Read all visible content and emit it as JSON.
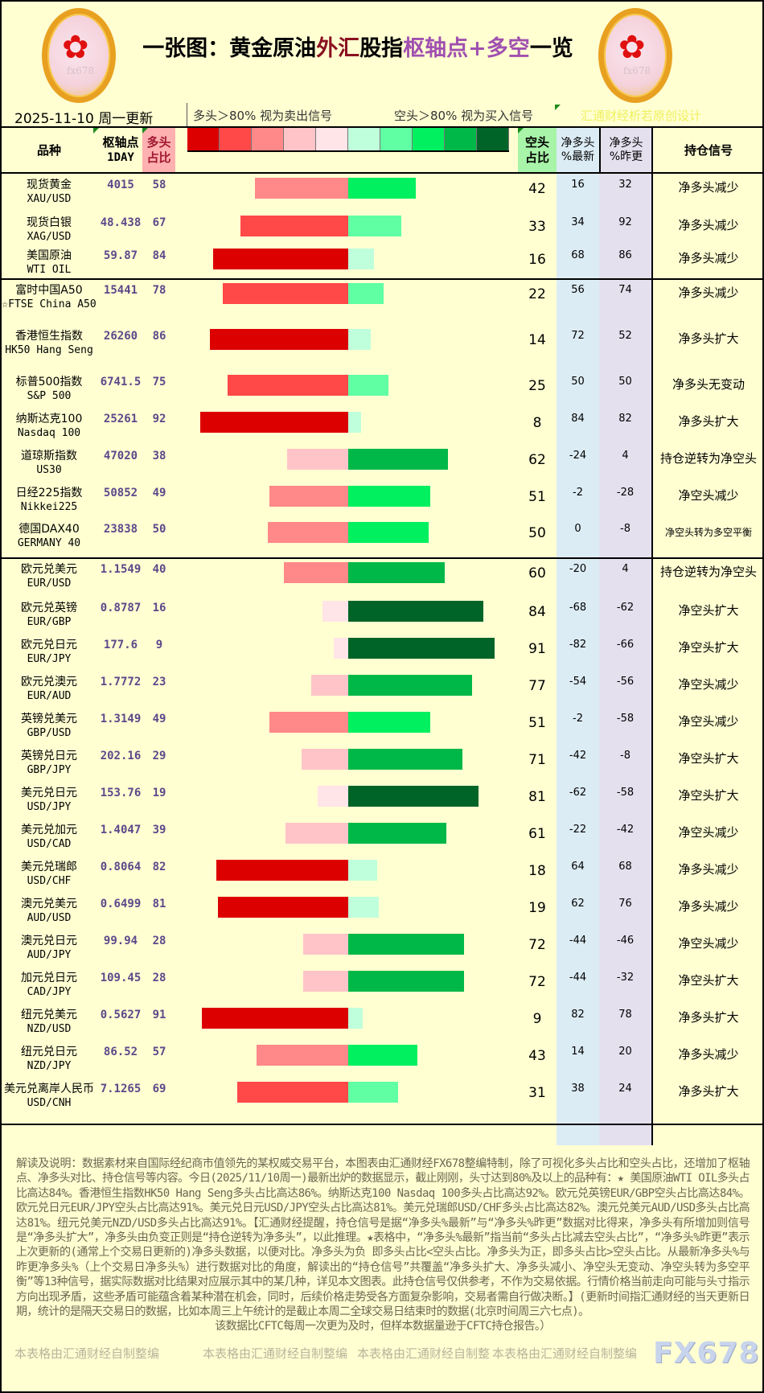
{
  "header": {
    "title_parts": [
      "一张图：黄金原油",
      "外汇",
      "股指",
      "枢轴点+多空",
      "一览"
    ],
    "date": "2025-11-10 周一更新",
    "legend_long": "多头＞80% 视为卖出信号",
    "legend_short": "空头＞80% 视为买入信号",
    "design": "汇通财经析若原创设计",
    "logo_watermark": "fx678 yly"
  },
  "legend_colors": {
    "long": [
      "#dd0000",
      "#ff4848",
      "#ff8888",
      "#ffc4c8",
      "#ffe4e8"
    ],
    "short": [
      "#c0ffdc",
      "#60ffa4",
      "#00f060",
      "#00b848",
      "#006428"
    ]
  },
  "columns": {
    "name": "品种",
    "pivot": "枢轴点",
    "pivot_sub": "1DAY",
    "long": "多头\n占比",
    "short": "空头\n占比",
    "net_latest": "净多头\n%最新",
    "net_prev": "净多头\n%昨更",
    "signal": "持仓信号"
  },
  "groups": [
    {
      "rows": [
        {
          "cn": "现货黄金",
          "en": "XAU/USD",
          "pivot": "4015",
          "long": 58,
          "short": 42,
          "net_latest": "16",
          "net_prev": "32",
          "signal": "净多头减少"
        },
        {
          "cn": "现货白银",
          "en": "XAG/USD",
          "pivot": "48.438",
          "long": 67,
          "short": 33,
          "net_latest": "34",
          "net_prev": "92",
          "signal": "净多头减少"
        },
        {
          "cn": "美国原油",
          "en": "WTI OIL",
          "pivot": "59.87",
          "long": 84,
          "short": 16,
          "net_latest": "68",
          "net_prev": "86",
          "signal": "净多头减少"
        }
      ]
    },
    {
      "rows": [
        {
          "cn": "富时中国A50",
          "en": "☆FTSE China A50",
          "pivot": "15441",
          "long": 78,
          "short": 22,
          "net_latest": "56",
          "net_prev": "74",
          "signal": "净多头减少"
        },
        {
          "cn": "香港恒生指数",
          "en": "HK50 Hang Seng",
          "pivot": "26260",
          "long": 86,
          "short": 14,
          "net_latest": "72",
          "net_prev": "52",
          "signal": "净多头扩大"
        },
        {
          "cn": "标普500指数",
          "en": "S&P 500",
          "pivot": "6741.5",
          "long": 75,
          "short": 25,
          "net_latest": "50",
          "net_prev": "50",
          "signal": "净多头无变动"
        },
        {
          "cn": "纳斯达克100",
          "en": "Nasdaq 100",
          "pivot": "25261",
          "long": 92,
          "short": 8,
          "net_latest": "84",
          "net_prev": "82",
          "signal": "净多头扩大"
        },
        {
          "cn": "道琼斯指数",
          "en": "US30",
          "pivot": "47020",
          "long": 38,
          "short": 62,
          "net_latest": "-24",
          "net_prev": "4",
          "signal": "持仓逆转为净空头"
        },
        {
          "cn": "日经225指数",
          "en": "Nikkei225",
          "pivot": "50852",
          "long": 49,
          "short": 51,
          "net_latest": "-2",
          "net_prev": "-28",
          "signal": "净空头减少"
        },
        {
          "cn": "德国DAX40",
          "en": "GERMANY 40",
          "pivot": "23838",
          "long": 50,
          "short": 50,
          "net_latest": "0",
          "net_prev": "-8",
          "signal": "净空头转为多空平衡"
        }
      ]
    },
    {
      "rows": [
        {
          "cn": "欧元兑美元",
          "en": "EUR/USD",
          "pivot": "1.1549",
          "long": 40,
          "short": 60,
          "net_latest": "-20",
          "net_prev": "4",
          "signal": "持仓逆转为净空头"
        },
        {
          "cn": "欧元兑英镑",
          "en": "EUR/GBP",
          "pivot": "0.8787",
          "long": 16,
          "short": 84,
          "net_latest": "-68",
          "net_prev": "-62",
          "signal": "净空头扩大"
        },
        {
          "cn": "欧元兑日元",
          "en": "EUR/JPY",
          "pivot": "177.6",
          "long": 9,
          "short": 91,
          "net_latest": "-82",
          "net_prev": "-66",
          "signal": "净空头扩大"
        },
        {
          "cn": "欧元兑澳元",
          "en": "EUR/AUD",
          "pivot": "1.7772",
          "long": 23,
          "short": 77,
          "net_latest": "-54",
          "net_prev": "-56",
          "signal": "净空头减少"
        },
        {
          "cn": "英镑兑美元",
          "en": "GBP/USD",
          "pivot": "1.3149",
          "long": 49,
          "short": 51,
          "net_latest": "-2",
          "net_prev": "-58",
          "signal": "净空头减少"
        },
        {
          "cn": "英镑兑日元",
          "en": "GBP/JPY",
          "pivot": "202.16",
          "long": 29,
          "short": 71,
          "net_latest": "-42",
          "net_prev": "-8",
          "signal": "净空头扩大"
        },
        {
          "cn": "美元兑日元",
          "en": "USD/JPY",
          "pivot": "153.76",
          "long": 19,
          "short": 81,
          "net_latest": "-62",
          "net_prev": "-58",
          "signal": "净空头扩大"
        },
        {
          "cn": "美元兑加元",
          "en": "USD/CAD",
          "pivot": "1.4047",
          "long": 39,
          "short": 61,
          "net_latest": "-22",
          "net_prev": "-42",
          "signal": "净空头减少"
        },
        {
          "cn": "美元兑瑞郎",
          "en": "USD/CHF",
          "pivot": "0.8064",
          "long": 82,
          "short": 18,
          "net_latest": "64",
          "net_prev": "68",
          "signal": "净多头减少"
        },
        {
          "cn": "澳元兑美元",
          "en": "AUD/USD",
          "pivot": "0.6499",
          "long": 81,
          "short": 19,
          "net_latest": "62",
          "net_prev": "76",
          "signal": "净多头减少"
        },
        {
          "cn": "澳元兑日元",
          "en": "AUD/JPY",
          "pivot": "99.94",
          "long": 28,
          "short": 72,
          "net_latest": "-44",
          "net_prev": "-46",
          "signal": "净空头减少"
        },
        {
          "cn": "加元兑日元",
          "en": "CAD/JPY",
          "pivot": "109.45",
          "long": 28,
          "short": 72,
          "net_latest": "-44",
          "net_prev": "-32",
          "signal": "净空头扩大"
        },
        {
          "cn": "纽元兑美元",
          "en": "NZD/USD",
          "pivot": "0.5627",
          "long": 91,
          "short": 9,
          "net_latest": "82",
          "net_prev": "78",
          "signal": "净多头扩大"
        },
        {
          "cn": "纽元兑日元",
          "en": "NZD/JPY",
          "pivot": "86.52",
          "long": 57,
          "short": 43,
          "net_latest": "14",
          "net_prev": "20",
          "signal": "净多头减少"
        },
        {
          "cn": "美元兑离岸人民币",
          "en": "USD/CNH",
          "pivot": "7.1265",
          "long": 69,
          "short": 31,
          "net_latest": "38",
          "net_prev": "24",
          "signal": "净多头扩大"
        }
      ]
    }
  ],
  "notes": {
    "body": "解读及说明：数据素材来自国际经纪商市值领先的某权威交易平台，本图表由汇通财经FX678整编特制，除了可视化多头占比和空头占比，还增加了枢轴点、净多头对比、持仓信号等内容。今日(2025/11/10周一)最新出炉的数据显示，截止刚刚，头寸达到80%及以上的品种有：★ 美国原油WTI OIL多头占比高达84%。香港恒生指数HK50 Hang Seng多头占比高达86%。纳斯达克100 Nasdaq 100多头占比高达92%。欧元兑英镑EUR/GBP空头占比高达84%。欧元兑日元EUR/JPY空头占比高达91%。美元兑日元USD/JPY空头占比高达81%。美元兑瑞郎USD/CHF多头占比高达82%。澳元兑美元AUD/USD多头占比高达81%。纽元兑美元NZD/USD多头占比高达91%。【汇通财经提醒，持仓信号是据“净多头%最新”与“净多头%昨更”数据对比得来，净多头有所增加则信号是“净多头扩大”，净多头由负变正则是“持仓逆转为净多头”，以此推理。★表格中，“净多头%最新”指当前“多头占比减去空头占比”，“净多头%昨更”表示上次更新的(通常上个交易日更新的)净多头数据，以便对比。净多头为负 即多头占比<空头占比。净多头为正，即多头占比>空头占比。从最新净多头%与昨更净多头%（上个交易日净多头%）进行数据对比的角度，解读出的“持仓信号”共覆盖“净多头扩大、净多头减小、净空头无变动、净空头转为多空平衡”等13种信号，据实际数据对比结果对应展示其中的某几种，详见本文图表。此持仓信号仅供参考，不作为交易依据。行情价格当前走向可能与头寸指示方向出现矛盾，这些矛盾可能蕴含着某种潜在机会，同时，后续价格走势受各方面复杂影响，交易者需自行做决断。】(更新时间指汇通财经的当天更新日期，统计的是隔天交易日的数据，比如本周三上午统计的是截止本周二全球交易日结束时的数据(北京时间周三六七点)。",
    "last": "该数据比CFTC每周一次更为及时，但样本数据量逊于CFTC持仓报告。）"
  },
  "footer": {
    "credit1": "本表格由汇通财经自制整编",
    "credit2": "本表格由汇通财经自制整编",
    "credit3": "本表格由汇通财经自制整",
    "credit4": "本表格由汇通财经自制整编",
    "brand": "FX678"
  }
}
